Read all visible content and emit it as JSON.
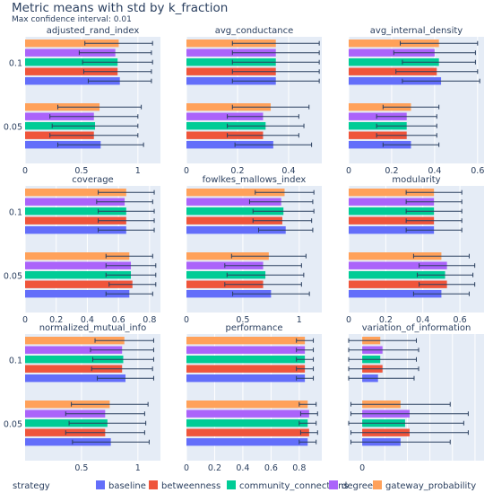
{
  "title": "Metric means with std by k_fraction",
  "subtitle": "Max confidence interval: 0.01",
  "legend": {
    "title": "strategy",
    "placement": "bottom"
  },
  "chart_data": {
    "type": "bar",
    "orientation": "horizontal",
    "grid": true,
    "categories": [
      "0.05",
      "0.1"
    ],
    "strategies": [
      "baseline",
      "betweenness",
      "community_connections",
      "degree",
      "gateway_probability"
    ],
    "colors": {
      "baseline": "#636efa",
      "betweenness": "#ef553b",
      "community_connections": "#00cc96",
      "degree": "#ab63fa",
      "gateway_probability": "#ffa15a"
    },
    "subplots": [
      {
        "title": "adjusted_rand_index",
        "xlim": [
          0,
          1.2
        ],
        "xticks": [
          0,
          0.5,
          1
        ],
        "xtick_labels": [
          "0",
          "0.5",
          "1"
        ],
        "means": {
          "0.05": [
            0.67,
            0.61,
            0.62,
            0.61,
            0.66
          ],
          "0.1": [
            0.84,
            0.82,
            0.82,
            0.8,
            0.83
          ]
        },
        "std": {
          "0.05": [
            0.38,
            0.39,
            0.38,
            0.39,
            0.37
          ],
          "0.1": [
            0.28,
            0.3,
            0.31,
            0.32,
            0.3
          ]
        }
      },
      {
        "title": "avg_conductance",
        "xlim": [
          0,
          0.53
        ],
        "xticks": [
          0,
          0.2,
          0.4
        ],
        "xtick_labels": [
          "0",
          "0.2",
          "0.4"
        ],
        "means": {
          "0.05": [
            0.34,
            0.3,
            0.31,
            0.3,
            0.33
          ],
          "0.1": [
            0.35,
            0.35,
            0.35,
            0.35,
            0.35
          ]
        },
        "std": {
          "0.05": [
            0.15,
            0.14,
            0.15,
            0.14,
            0.15
          ],
          "0.1": [
            0.17,
            0.17,
            0.17,
            0.17,
            0.17
          ]
        }
      },
      {
        "title": "avg_internal_density",
        "xlim": [
          0,
          0.63
        ],
        "xticks": [
          0,
          0.2,
          0.4,
          0.6
        ],
        "xtick_labels": [
          "0",
          "0.2",
          "0.4",
          "0.6"
        ],
        "means": {
          "0.05": [
            0.29,
            0.27,
            0.27,
            0.27,
            0.29
          ],
          "0.1": [
            0.43,
            0.41,
            0.42,
            0.4,
            0.42
          ]
        },
        "std": {
          "0.05": [
            0.13,
            0.14,
            0.14,
            0.14,
            0.13
          ],
          "0.1": [
            0.18,
            0.19,
            0.17,
            0.19,
            0.18
          ]
        }
      },
      {
        "title": "coverage",
        "xlim": [
          0,
          0.87
        ],
        "xticks": [
          0,
          0.2,
          0.4,
          0.6,
          0.8
        ],
        "xtick_labels": [
          "0",
          "0.2",
          "0.4",
          "0.6",
          "0.8"
        ],
        "means": {
          "0.05": [
            0.67,
            0.69,
            0.68,
            0.68,
            0.67
          ],
          "0.1": [
            0.65,
            0.65,
            0.65,
            0.64,
            0.65
          ]
        },
        "std": {
          "0.05": [
            0.15,
            0.15,
            0.16,
            0.16,
            0.15
          ],
          "0.1": [
            0.18,
            0.18,
            0.18,
            0.18,
            0.18
          ]
        }
      },
      {
        "title": "fowlkes_mallows_index",
        "xlim": [
          0,
          1.2
        ],
        "xticks": [
          0,
          0.5,
          1
        ],
        "xtick_labels": [
          "0",
          "0.5",
          "1"
        ],
        "means": {
          "0.05": [
            0.75,
            0.68,
            0.7,
            0.68,
            0.73
          ],
          "0.1": [
            0.88,
            0.85,
            0.86,
            0.84,
            0.87
          ]
        },
        "std": {
          "0.05": [
            0.34,
            0.34,
            0.34,
            0.34,
            0.33
          ],
          "0.1": [
            0.24,
            0.26,
            0.27,
            0.28,
            0.26
          ]
        }
      },
      {
        "title": "modularity",
        "xlim": [
          0,
          0.73
        ],
        "xticks": [
          0,
          0.2,
          0.4,
          0.6
        ],
        "xtick_labels": [
          "0",
          "0.2",
          "0.4",
          "0.6"
        ],
        "means": {
          "0.05": [
            0.5,
            0.53,
            0.52,
            0.53,
            0.5
          ],
          "0.1": [
            0.46,
            0.46,
            0.46,
            0.46,
            0.46
          ]
        },
        "std": {
          "0.05": [
            0.15,
            0.15,
            0.15,
            0.15,
            0.15
          ],
          "0.1": [
            0.15,
            0.15,
            0.15,
            0.15,
            0.15
          ]
        }
      },
      {
        "title": "normalized_mutual_info",
        "xlim": [
          0,
          1.2
        ],
        "xticks": [
          0.5,
          1
        ],
        "xtick_labels": [
          "0.5",
          "1"
        ],
        "means": {
          "0.05": [
            0.76,
            0.71,
            0.73,
            0.71,
            0.75
          ],
          "0.1": [
            0.89,
            0.86,
            0.87,
            0.86,
            0.88
          ]
        },
        "std": {
          "0.05": [
            0.34,
            0.35,
            0.34,
            0.35,
            0.34
          ],
          "0.1": [
            0.25,
            0.27,
            0.27,
            0.28,
            0.26
          ]
        }
      },
      {
        "title": "performance",
        "xlim": [
          0,
          0.96
        ],
        "xticks": [
          0,
          0.2,
          0.4,
          0.6,
          0.8
        ],
        "xtick_labels": [
          "0",
          "0.2",
          "0.4",
          "0.6",
          "0.8"
        ],
        "means": {
          "0.05": [
            0.86,
            0.87,
            0.86,
            0.87,
            0.86
          ],
          "0.1": [
            0.84,
            0.84,
            0.84,
            0.84,
            0.84
          ]
        },
        "std": {
          "0.05": [
            0.06,
            0.06,
            0.06,
            0.06,
            0.06
          ],
          "0.1": [
            0.06,
            0.06,
            0.06,
            0.06,
            0.06
          ]
        }
      },
      {
        "title": "variation_of_information",
        "xlim": [
          -0.3,
          2.7
        ],
        "xticks": [
          0,
          0.5,
          1,
          1.5,
          2,
          2.5
        ],
        "xtick_labels": [
          "0",
          "",
          "",
          "",
          "",
          ""
        ],
        "means": {
          "0.05": [
            0.85,
            1.05,
            0.95,
            1.05,
            0.85
          ],
          "0.1": [
            0.35,
            0.45,
            0.4,
            0.45,
            0.4
          ]
        },
        "std": {
          "0.05": [
            1.1,
            1.3,
            1.3,
            1.3,
            1.1
          ],
          "0.1": [
            0.8,
            0.8,
            0.8,
            0.8,
            0.8
          ]
        }
      }
    ]
  }
}
